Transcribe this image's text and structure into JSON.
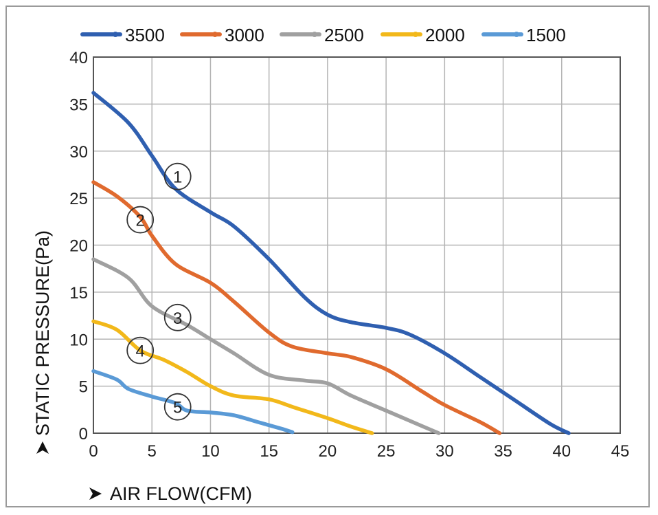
{
  "chart_data": {
    "type": "line",
    "xlabel": "AIR FLOW(CFM)",
    "ylabel": "STATIC PRESSURE(Pa)",
    "xlim": [
      0,
      45
    ],
    "ylim": [
      0,
      40
    ],
    "xticks": [
      "0",
      "5",
      "10",
      "15",
      "20",
      "25",
      "30",
      "35",
      "40",
      "45"
    ],
    "yticks": [
      "0",
      "5",
      "10",
      "15",
      "20",
      "25",
      "30",
      "35",
      "40"
    ],
    "grid": true,
    "legend_position": "top",
    "series": [
      {
        "name": "3500",
        "color": "#2f5fb0",
        "marker": "1",
        "x": [
          0,
          3,
          5,
          7,
          10,
          12,
          15,
          18,
          20,
          22,
          25,
          27,
          30,
          33,
          36,
          39,
          40.6
        ],
        "y": [
          36.2,
          33,
          29.5,
          26,
          23.5,
          22,
          18.5,
          14.5,
          12.6,
          11.8,
          11.2,
          10.5,
          8.5,
          6,
          3.5,
          1,
          0
        ]
      },
      {
        "name": "3000",
        "color": "#e06a2e",
        "marker": "2",
        "x": [
          0,
          2,
          4,
          5,
          7,
          10,
          12,
          15,
          17,
          20,
          22,
          25,
          28,
          30,
          33,
          34.7
        ],
        "y": [
          26.7,
          25.2,
          23,
          21,
          18,
          16,
          14,
          10.7,
          9.2,
          8.5,
          8.1,
          6.8,
          4.5,
          3,
          1.2,
          0
        ]
      },
      {
        "name": "2500",
        "color": "#a0a0a0",
        "marker": "3",
        "x": [
          0,
          3,
          5,
          8,
          10,
          12,
          15,
          18,
          20,
          22,
          25,
          28,
          29.5
        ],
        "y": [
          18.5,
          16.5,
          13.5,
          11.5,
          10,
          8.5,
          6.2,
          5.6,
          5.3,
          4,
          2.4,
          0.8,
          0
        ]
      },
      {
        "name": "2000",
        "color": "#f2b81a",
        "marker": "4",
        "x": [
          0,
          2,
          4,
          6,
          8,
          10,
          12,
          15,
          17,
          20,
          22,
          23.8
        ],
        "y": [
          11.9,
          11,
          8.8,
          7.8,
          6.5,
          5,
          4,
          3.6,
          2.8,
          1.6,
          0.7,
          0
        ]
      },
      {
        "name": "1500",
        "color": "#5a9ad6",
        "marker": "5",
        "x": [
          0,
          2,
          3,
          5,
          7,
          8,
          10,
          12,
          14,
          16,
          17
        ],
        "y": [
          6.6,
          5.7,
          4.7,
          3.9,
          3.2,
          2.4,
          2.2,
          1.9,
          1.2,
          0.5,
          0.1
        ]
      }
    ],
    "annotations": [
      {
        "label": "1",
        "x": 7.2,
        "y": 27.3
      },
      {
        "label": "2",
        "x": 4.0,
        "y": 22.7
      },
      {
        "label": "3",
        "x": 7.2,
        "y": 12.3
      },
      {
        "label": "4",
        "x": 4.0,
        "y": 8.8
      },
      {
        "label": "5",
        "x": 7.2,
        "y": 2.8
      }
    ]
  }
}
